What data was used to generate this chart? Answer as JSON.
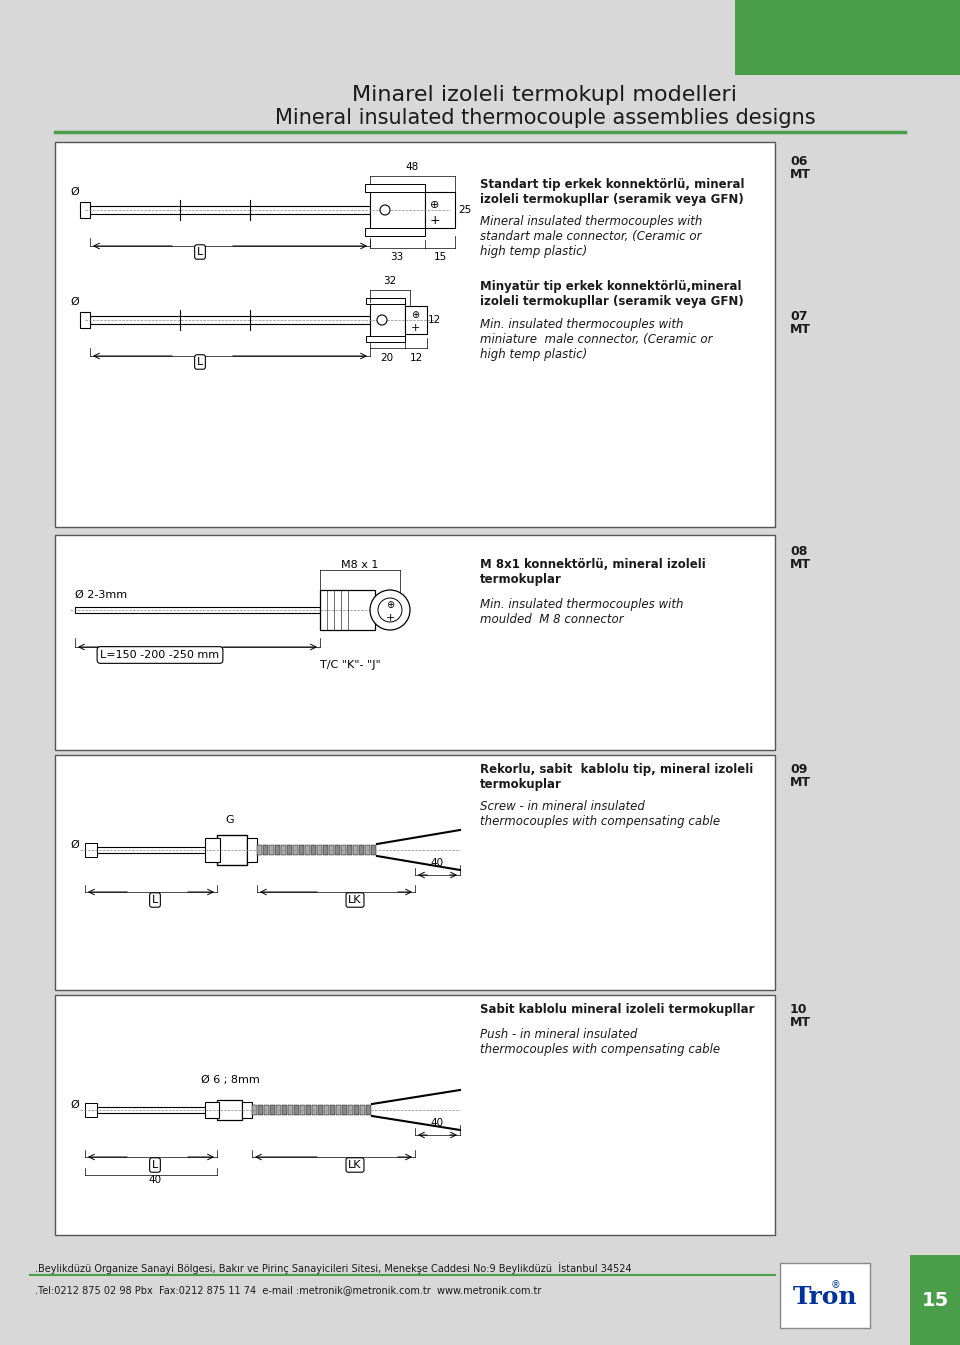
{
  "bg_color": "#d8d8d8",
  "white_bg": "#ffffff",
  "green_color": "#4a9e4a",
  "dark_text": "#1a1a1a",
  "title_line1": "Minarel izoleli termokupl modelleri",
  "title_line2": "Mineral insulated thermocouple assemblies designs",
  "footer_line1": ".Beylikdüzü Organize Sanayi Bölgesi, Bakır ve Pirinç Sanayicileri Sitesi, Menekşe Caddesi No:9 Beylikdüzü  İstanbul 34524",
  "footer_line2": ".Tel:0212 875 02 98 Pbx  Fax:0212 875 11 74  e-mail :metronik@metronik.com.tr  www.metronik.com.tr",
  "page_number": "15",
  "section_06_label": "06\nMT",
  "section_07_label": "07\nMT",
  "section_08_label": "08\nMT",
  "section_09_label": "09\nMT",
  "section_10_label": "10\nMT"
}
